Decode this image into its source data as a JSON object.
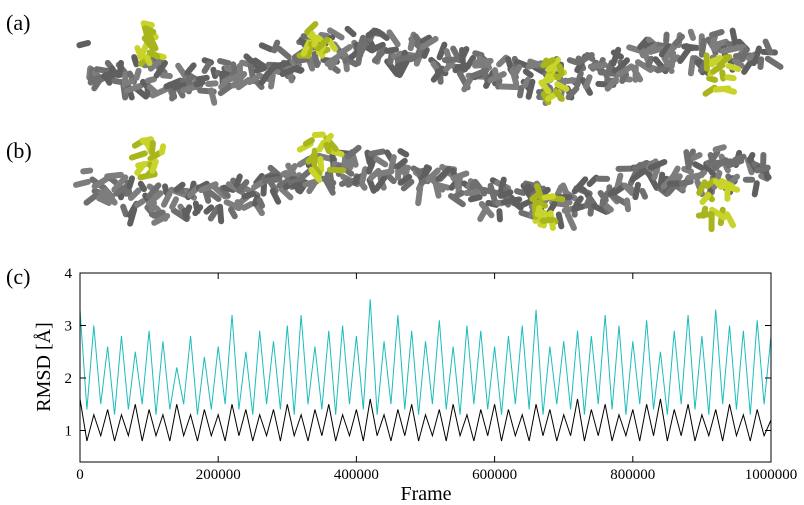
{
  "panel_labels": [
    "(a)",
    "(b)",
    "(c)"
  ],
  "chart_data": {
    "type": "line",
    "xlabel": "Frame",
    "ylabel": "RMSD [Å]",
    "xlim": [
      0,
      1000000
    ],
    "xticks": [
      0,
      200000,
      400000,
      600000,
      800000,
      1000000
    ],
    "ylim": [
      0.4,
      4
    ],
    "yticks": [
      1,
      2,
      3,
      4
    ],
    "x": [
      0,
      10000,
      20000,
      30000,
      40000,
      50000,
      60000,
      70000,
      80000,
      90000,
      100000,
      110000,
      120000,
      130000,
      140000,
      150000,
      160000,
      170000,
      180000,
      190000,
      200000,
      210000,
      220000,
      230000,
      240000,
      250000,
      260000,
      270000,
      280000,
      290000,
      300000,
      310000,
      320000,
      330000,
      340000,
      350000,
      360000,
      370000,
      380000,
      390000,
      400000,
      410000,
      420000,
      430000,
      440000,
      450000,
      460000,
      470000,
      480000,
      490000,
      500000,
      510000,
      520000,
      530000,
      540000,
      550000,
      560000,
      570000,
      580000,
      590000,
      600000,
      610000,
      620000,
      630000,
      640000,
      650000,
      660000,
      670000,
      680000,
      690000,
      700000,
      710000,
      720000,
      730000,
      740000,
      750000,
      760000,
      770000,
      780000,
      790000,
      800000,
      810000,
      820000,
      830000,
      840000,
      850000,
      860000,
      870000,
      880000,
      890000,
      900000,
      910000,
      920000,
      930000,
      940000,
      950000,
      960000,
      970000,
      980000,
      990000,
      1000000
    ],
    "series": [
      {
        "color": "#1cbcbc",
        "values": [
          3.3,
          1.4,
          3.0,
          1.5,
          2.6,
          1.3,
          2.8,
          1.4,
          2.5,
          1.5,
          2.9,
          1.3,
          2.7,
          1.4,
          2.2,
          1.5,
          2.8,
          1.3,
          2.4,
          1.4,
          2.6,
          1.5,
          3.2,
          1.4,
          2.5,
          1.3,
          2.9,
          1.5,
          2.7,
          1.4,
          3.0,
          1.3,
          3.2,
          1.5,
          2.6,
          1.4,
          2.9,
          1.3,
          3.0,
          1.5,
          2.8,
          1.4,
          3.5,
          1.3,
          2.7,
          1.5,
          3.2,
          1.4,
          2.9,
          1.3,
          2.7,
          1.5,
          3.1,
          1.4,
          2.6,
          1.3,
          3.0,
          1.5,
          2.9,
          1.4,
          2.6,
          1.3,
          2.8,
          1.5,
          3.0,
          1.4,
          3.3,
          1.3,
          2.6,
          1.5,
          2.7,
          1.4,
          2.9,
          1.3,
          2.8,
          1.5,
          3.2,
          1.4,
          3.0,
          1.3,
          2.7,
          1.5,
          3.1,
          1.4,
          2.5,
          1.3,
          2.9,
          1.5,
          3.2,
          1.4,
          2.8,
          1.3,
          3.3,
          1.5,
          3.0,
          1.4,
          2.9,
          1.3,
          3.1,
          1.5,
          2.8
        ]
      },
      {
        "color": "#000000",
        "values": [
          1.6,
          0.8,
          1.3,
          0.9,
          1.4,
          0.8,
          1.3,
          0.9,
          1.5,
          0.8,
          1.4,
          0.9,
          1.3,
          0.8,
          1.5,
          0.9,
          1.3,
          0.8,
          1.4,
          0.9,
          1.3,
          0.8,
          1.5,
          0.9,
          1.4,
          0.8,
          1.3,
          0.9,
          1.4,
          0.8,
          1.5,
          0.9,
          1.3,
          0.8,
          1.4,
          0.9,
          1.5,
          0.8,
          1.3,
          0.9,
          1.4,
          0.8,
          1.6,
          0.9,
          1.3,
          0.8,
          1.4,
          0.9,
          1.5,
          0.8,
          1.3,
          0.9,
          1.4,
          0.8,
          1.5,
          0.9,
          1.3,
          0.8,
          1.4,
          0.9,
          1.5,
          0.8,
          1.4,
          0.9,
          1.3,
          0.8,
          1.5,
          0.9,
          1.4,
          0.8,
          1.3,
          0.9,
          1.6,
          0.8,
          1.4,
          0.9,
          1.5,
          0.8,
          1.3,
          0.9,
          1.4,
          0.8,
          1.5,
          0.9,
          1.6,
          0.8,
          1.4,
          0.9,
          1.5,
          0.8,
          1.3,
          0.9,
          1.4,
          0.8,
          1.5,
          0.9,
          1.3,
          0.8,
          1.4,
          0.9,
          1.2
        ]
      }
    ]
  }
}
